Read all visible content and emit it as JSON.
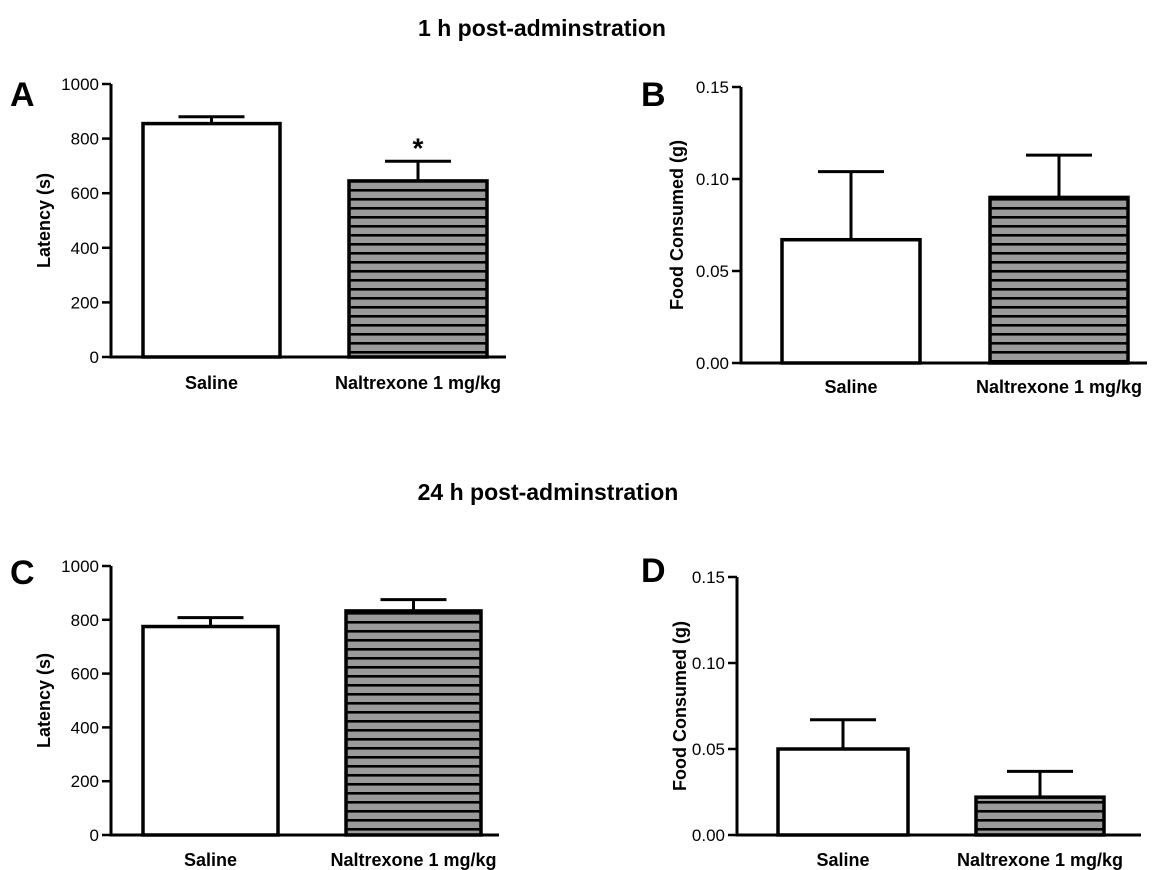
{
  "section_titles": {
    "top": "1 h post-adminstration",
    "bottom": "24 h post-adminstration"
  },
  "colors": {
    "bar_outline": "#000000",
    "saline_fill": "#ffffff",
    "naltrexone_fill": "#9a9a9a",
    "stripe": "#000000"
  },
  "chart_data": [
    {
      "panel": "A",
      "type": "bar",
      "section": "1 h post-adminstration",
      "categories": [
        "Saline",
        "Naltrexone 1 mg/kg"
      ],
      "values": [
        855,
        645
      ],
      "errors": [
        25,
        72
      ],
      "ylabel": "Latency (s)",
      "ylim": [
        0,
        1000
      ],
      "yticks": [
        0,
        200,
        400,
        600,
        800,
        1000
      ],
      "ytick_labels": [
        "0",
        "200",
        "400",
        "600",
        "800",
        "1000"
      ],
      "annotations": [
        {
          "category_index": 1,
          "text": "*"
        }
      ],
      "fill_patterns": [
        "none",
        "horizontal-stripes"
      ]
    },
    {
      "panel": "B",
      "type": "bar",
      "section": "1 h post-adminstration",
      "categories": [
        "Saline",
        "Naltrexone 1 mg/kg"
      ],
      "values": [
        0.067,
        0.09
      ],
      "errors": [
        0.037,
        0.023
      ],
      "ylabel": "Food Consumed (g)",
      "ylim": [
        0,
        0.15
      ],
      "yticks": [
        0,
        0.05,
        0.1,
        0.15
      ],
      "ytick_labels": [
        "0.00",
        "0.05",
        "0.10",
        "0.15"
      ],
      "annotations": [],
      "fill_patterns": [
        "none",
        "horizontal-stripes"
      ]
    },
    {
      "panel": "C",
      "type": "bar",
      "section": "24 h post-adminstration",
      "categories": [
        "Saline",
        "Naltrexone 1 mg/kg"
      ],
      "values": [
        775,
        833
      ],
      "errors": [
        33,
        42
      ],
      "ylabel": "Latency (s)",
      "ylim": [
        0,
        1000
      ],
      "yticks": [
        0,
        200,
        400,
        600,
        800,
        1000
      ],
      "ytick_labels": [
        "0",
        "200",
        "400",
        "600",
        "800",
        "1000"
      ],
      "annotations": [],
      "fill_patterns": [
        "none",
        "horizontal-stripes"
      ]
    },
    {
      "panel": "D",
      "type": "bar",
      "section": "24 h post-adminstration",
      "categories": [
        "Saline",
        "Naltrexone 1 mg/kg"
      ],
      "values": [
        0.05,
        0.022
      ],
      "errors": [
        0.017,
        0.015
      ],
      "ylabel": "Food Consumed (g)",
      "ylim": [
        0,
        0.15
      ],
      "yticks": [
        0,
        0.05,
        0.1,
        0.15
      ],
      "ytick_labels": [
        "0.00",
        "0.05",
        "0.10",
        "0.15"
      ],
      "annotations": [],
      "fill_patterns": [
        "none",
        "horizontal-stripes"
      ]
    }
  ]
}
